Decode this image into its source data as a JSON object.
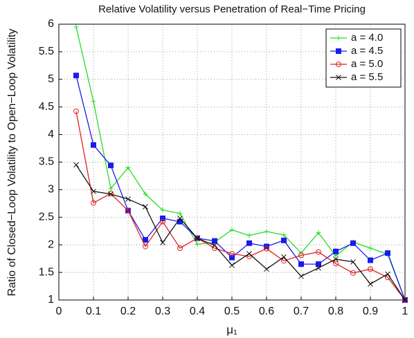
{
  "chart_data": {
    "type": "line",
    "title": "Relative Volatility versus Penetration of Real−Time Pricing",
    "x_label": "μ₁",
    "y_label": "Ratio of Closed−Loop Volatility to Open−Loop Volatility",
    "x": [
      0.05,
      0.1,
      0.15,
      0.2,
      0.25,
      0.3,
      0.35,
      0.4,
      0.45,
      0.5,
      0.55,
      0.6,
      0.65,
      0.7,
      0.75,
      0.8,
      0.85,
      0.9,
      0.95,
      1
    ],
    "series": [
      {
        "name": "a = 4.0",
        "color": "#22dd22",
        "marker": "plus",
        "values": [
          5.95,
          4.6,
          3.02,
          3.4,
          2.92,
          2.63,
          2.57,
          2.01,
          2.05,
          2.27,
          2.17,
          2.24,
          2.18,
          1.85,
          2.22,
          1.8,
          2.05,
          1.94,
          1.83,
          1.0
        ]
      },
      {
        "name": "a = 4.5",
        "color": "#1a1aee",
        "marker": "square",
        "values": [
          5.07,
          3.81,
          3.44,
          2.62,
          2.09,
          2.48,
          2.42,
          2.12,
          2.07,
          1.77,
          2.03,
          1.97,
          2.08,
          1.65,
          1.65,
          1.88,
          2.03,
          1.72,
          1.85,
          1.0
        ]
      },
      {
        "name": "a = 5.0",
        "color": "#dd2222",
        "marker": "circle",
        "values": [
          4.42,
          2.76,
          2.93,
          2.62,
          1.97,
          2.42,
          1.94,
          2.12,
          1.94,
          1.84,
          1.79,
          1.93,
          1.71,
          1.81,
          1.87,
          1.66,
          1.49,
          1.56,
          1.41,
          1.0
        ]
      },
      {
        "name": "a = 5.5",
        "color": "#111111",
        "marker": "x",
        "values": [
          3.45,
          2.97,
          2.92,
          2.83,
          2.69,
          2.04,
          2.48,
          2.12,
          1.99,
          1.63,
          1.84,
          1.56,
          1.78,
          1.43,
          1.58,
          1.74,
          1.69,
          1.29,
          1.47,
          1.0
        ]
      }
    ],
    "xlim": [
      0,
      1
    ],
    "xticks": [
      0,
      0.1,
      0.2,
      0.3,
      0.4,
      0.5,
      0.6,
      0.7,
      0.8,
      0.9,
      1
    ],
    "ylim": [
      1,
      6
    ],
    "yticks": [
      1,
      1.5,
      2,
      2.5,
      3,
      3.5,
      4,
      4.5,
      5,
      5.5,
      6
    ],
    "grid": true,
    "legend": "upper right"
  }
}
